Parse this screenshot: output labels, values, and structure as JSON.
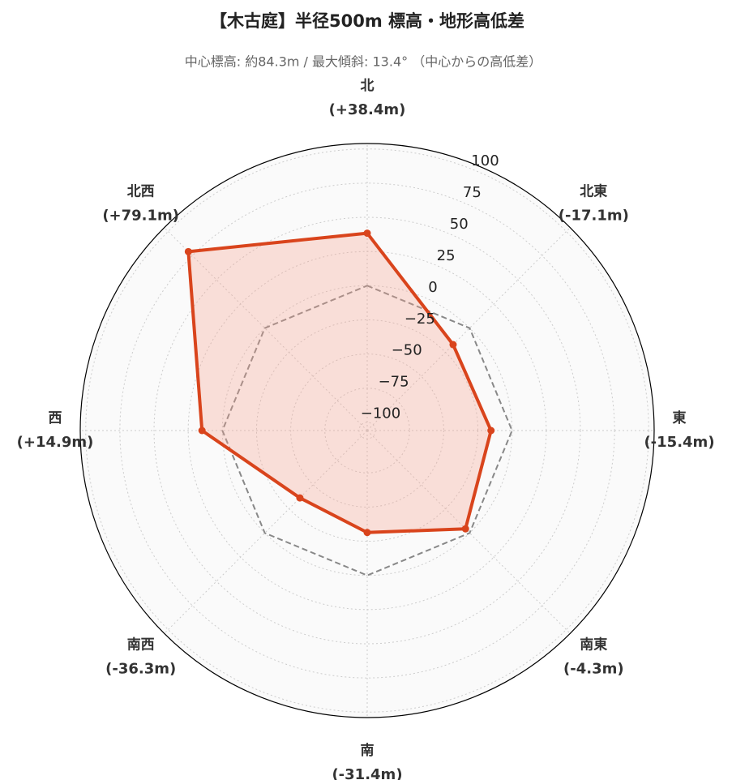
{
  "chart_data": {
    "type": "radar",
    "title": "【木古庭】半径500m 標高・地形高低差",
    "subtitle": "中心標高: 約84.3m / 最大傾斜: 13.4° （中心からの高低差）",
    "categories": [
      "北",
      "北東",
      "東",
      "南東",
      "南",
      "南西",
      "西",
      "北西"
    ],
    "values": [
      38.4,
      -17.1,
      -15.4,
      -4.3,
      -31.4,
      -36.3,
      14.9,
      79.1
    ],
    "value_labels": [
      "(+38.4m)",
      "(-17.1m)",
      "(-15.4m)",
      "(-4.3m)",
      "(-31.4m)",
      "(-36.3m)",
      "(+14.9m)",
      "(+79.1m)"
    ],
    "color": "#d9441c",
    "fill": "rgba(250,160,140,0.3)",
    "reference": {
      "values": [
        0,
        0,
        0,
        0,
        0,
        0,
        0,
        0
      ],
      "color": "#888888",
      "dash": true
    },
    "rlim": [
      -106,
      104
    ],
    "rticks": [
      100,
      75,
      50,
      25,
      0,
      {
        "value": -25,
        "label": "−25"
      },
      {
        "value": -50,
        "label": "−50"
      },
      {
        "value": -75,
        "label": "−75"
      },
      {
        "value": -100,
        "label": "−100"
      }
    ],
    "grid": true
  }
}
